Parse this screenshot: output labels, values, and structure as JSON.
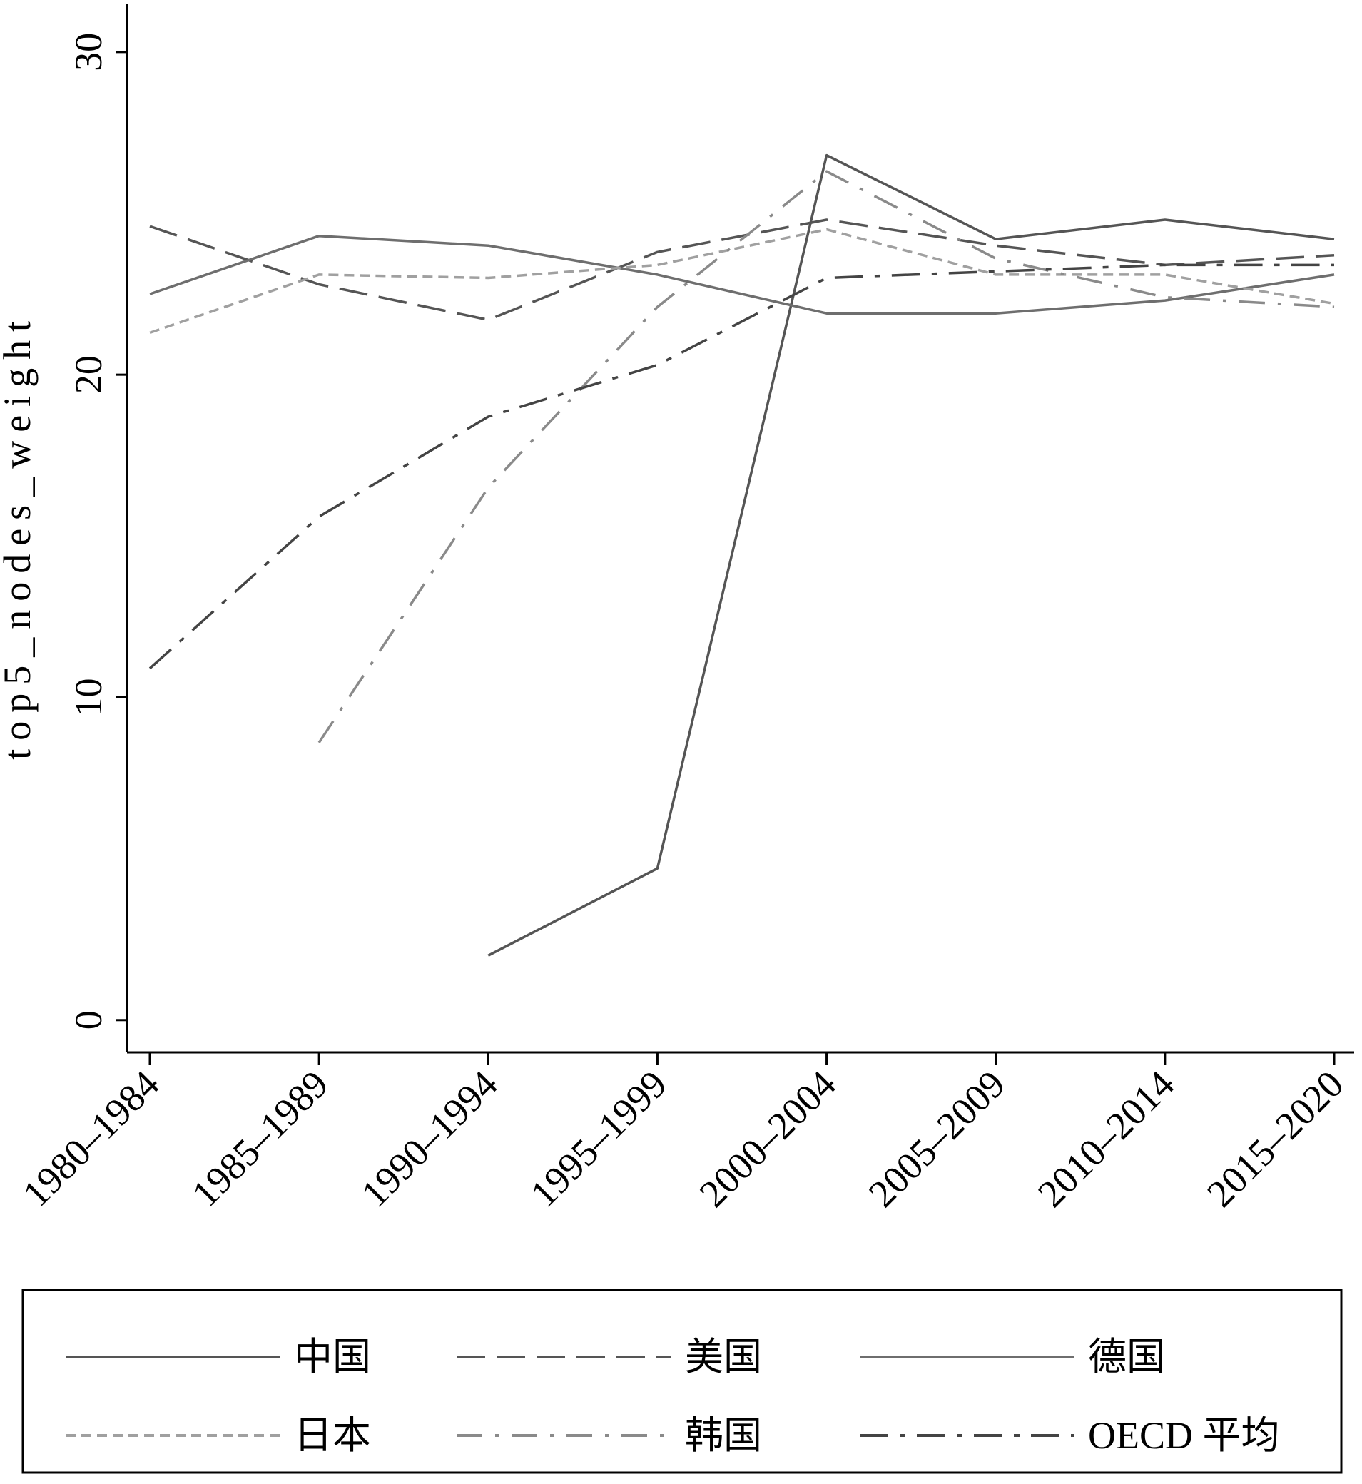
{
  "chart_data": {
    "type": "line",
    "ylabel": "top5_nodes_weight",
    "xlabel": "",
    "categories": [
      "1980–1984",
      "1985–1989",
      "1990–1994",
      "1995–1999",
      "2000–2004",
      "2005–2009",
      "2010–2014",
      "2015–2020"
    ],
    "ylim": [
      -1,
      31.5
    ],
    "yticks": [
      0,
      10,
      20,
      30
    ],
    "grid": false,
    "legend_position": "bottom",
    "series": [
      {
        "name": "中国",
        "color": "#555555",
        "dash": "solid",
        "values": [
          null,
          null,
          2.0,
          4.7,
          26.8,
          24.2,
          24.8,
          24.2
        ]
      },
      {
        "name": "美国",
        "color": "#555555",
        "dash": "longdash",
        "values": [
          24.6,
          22.8,
          21.7,
          23.8,
          24.8,
          24.0,
          23.4,
          23.7
        ]
      },
      {
        "name": "德国",
        "color": "#6e6e6e",
        "dash": "solid",
        "values": [
          22.5,
          24.3,
          24.0,
          23.1,
          21.9,
          21.9,
          22.3,
          23.1
        ]
      },
      {
        "name": "日本",
        "color": "#a0a0a0",
        "dash": "shortdash",
        "values": [
          21.3,
          23.1,
          23.0,
          23.4,
          24.5,
          23.1,
          23.1,
          22.2
        ]
      },
      {
        "name": "韩国",
        "color": "#8a8a8a",
        "dash": "dashdot",
        "values": [
          null,
          8.6,
          16.5,
          22.1,
          26.3,
          23.6,
          22.4,
          22.1
        ]
      },
      {
        "name": "OECD 平均",
        "color": "#444444",
        "dash": "longdashdot",
        "values": [
          10.9,
          15.6,
          18.7,
          20.3,
          23.0,
          23.2,
          23.4,
          23.4
        ]
      }
    ]
  }
}
